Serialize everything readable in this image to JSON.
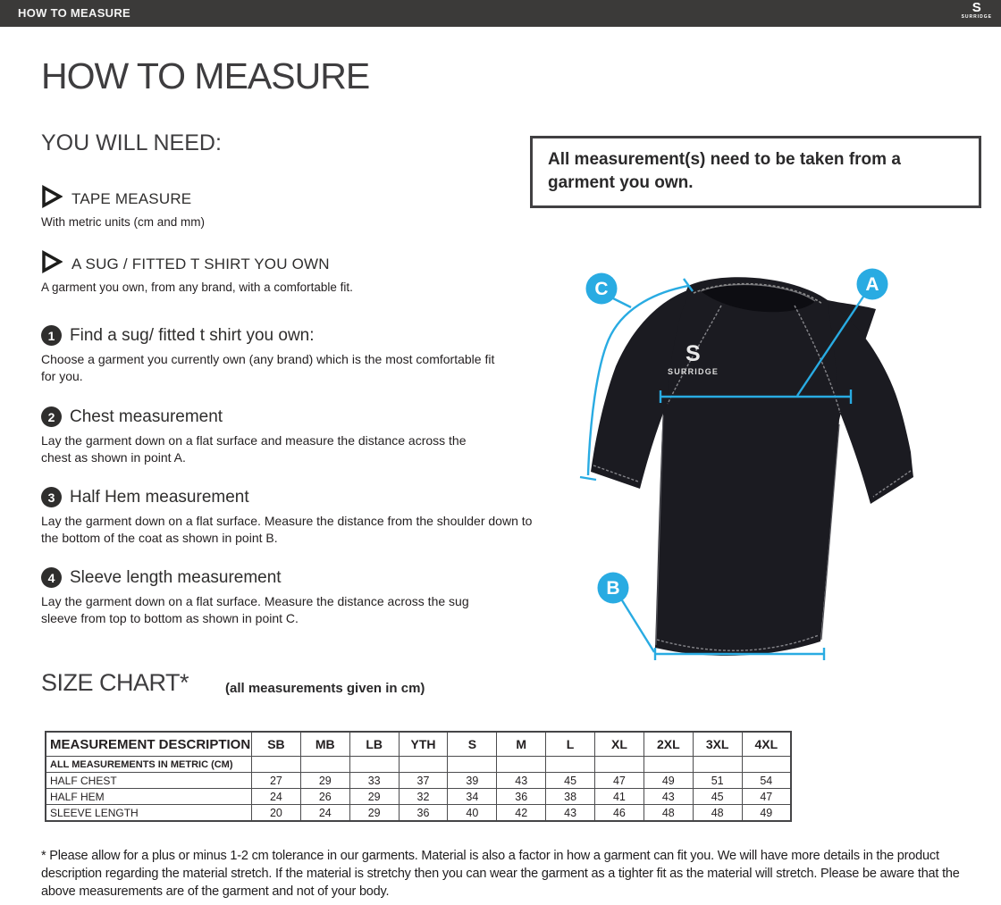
{
  "topbar": {
    "title": "HOW TO MEASURE",
    "brand": {
      "initial": "S",
      "name": "SURRIDGE"
    }
  },
  "page": {
    "title": "HOW TO MEASURE",
    "you_will_need": {
      "heading": "YOU WILL NEED:",
      "items": [
        {
          "label": "TAPE MEASURE",
          "description": "With metric units (cm and mm)"
        },
        {
          "label": "A SUG / FITTED T SHIRT YOU OWN",
          "description": "A garment you own, from any brand, with a comfortable fit."
        }
      ]
    },
    "steps": [
      {
        "number": "1",
        "title": "Find a sug/ fitted t shirt you own:",
        "description": "Choose a garment you currently own (any brand) which is the most comfortable fit for you."
      },
      {
        "number": "2",
        "title": "Chest measurement",
        "description": "Lay the garment down on a flat surface and measure the distance across the chest as shown in point A."
      },
      {
        "number": "3",
        "title": "Half Hem measurement",
        "description": "Lay the garment down on a flat surface. Measure the distance from the shoulder down to the bottom of the coat as shown in point B."
      },
      {
        "number": "4",
        "title": "Sleeve length measurement",
        "description": "Lay the garment down on a flat surface. Measure the distance across the sug sleeve from top to bottom as shown in point C."
      }
    ],
    "note": "All measurement(s) need to be taken from a garment you own.",
    "diagram": {
      "point_a": "A",
      "point_b": "B",
      "point_c": "C",
      "shirt_logo_initial": "S",
      "shirt_logo_text": "SURRIDGE",
      "accent_color": "#29abe2"
    },
    "size_chart": {
      "heading": "SIZE CHART*",
      "subheading": "(all measurements given in cm)",
      "table": {
        "description_header": "MEASUREMENT DESCRIPTION",
        "sizes": [
          "SB",
          "MB",
          "LB",
          "YTH",
          "S",
          "M",
          "L",
          "XL",
          "2XL",
          "3XL",
          "4XL"
        ],
        "metric_row_label": "ALL MEASUREMENTS IN METRIC (CM)",
        "rows": [
          {
            "label": "HALF CHEST",
            "values": [
              27,
              29,
              33,
              37,
              39,
              43,
              45,
              47,
              49,
              51,
              54
            ]
          },
          {
            "label": "HALF HEM",
            "values": [
              24,
              26,
              29,
              32,
              34,
              36,
              38,
              41,
              43,
              45,
              47
            ]
          },
          {
            "label": "SLEEVE LENGTH",
            "values": [
              20,
              24,
              29,
              36,
              40,
              42,
              43,
              46,
              48,
              48,
              49
            ]
          }
        ]
      }
    },
    "footnote": "* Please allow for a plus or minus 1-2 cm tolerance in our garments. Material is also a factor in how a garment can fit you. We will have more details in the product description regarding the material stretch.  If the material is stretchy then you can wear the garment as a tighter fit as the material will stretch.  Please be aware that the above measurements are of the garment and not of your body."
  }
}
